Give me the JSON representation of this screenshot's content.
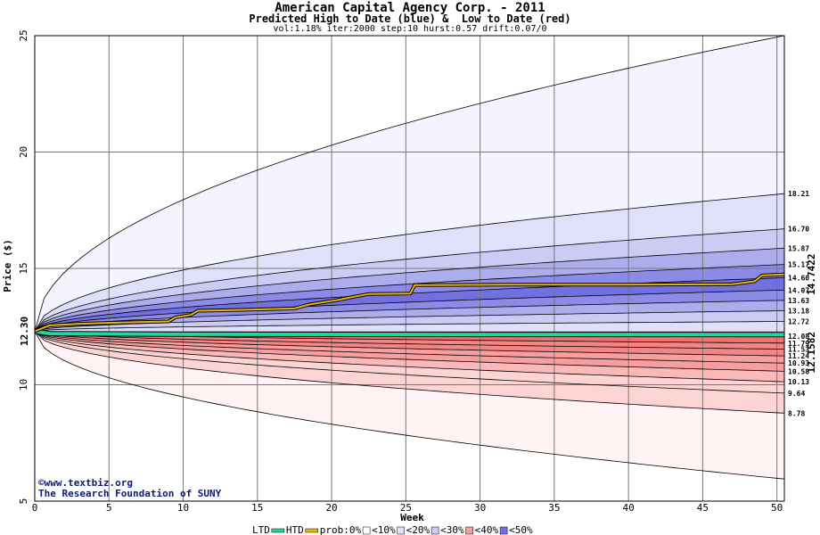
{
  "header": {
    "title": "American Capital Agency Corp. - 2011",
    "subtitle": "Predicted High to Date (blue) &  Low to Date (red)",
    "params": "vol:1.18% iter:2000 step:10 hurst:0.57 drift:0.07/0"
  },
  "watermark": {
    "line1": "©www.textbiz.org",
    "line2": "The Research Foundation of SUNY"
  },
  "legend": {
    "ltd": "LTD",
    "htd": "HTD",
    "prob": "prob:0%",
    "b10": "<10%",
    "b20": "<20%",
    "b30": "<30%",
    "b40": "<40%",
    "b50": "<50%"
  },
  "colors": {
    "ltd": "#1fd6a0",
    "htd": "#f0b400",
    "blue": [
      "#f4f4ff",
      "#e0e0fa",
      "#cbcbf4",
      "#adadee",
      "#8c8ce8",
      "#7070e0"
    ],
    "red": [
      "#fff3f3",
      "#fcd4d4",
      "#fab8b8",
      "#f79e9e",
      "#f48585",
      "#f07070"
    ]
  },
  "chart_data": {
    "type": "area",
    "xlabel": "Week",
    "ylabel": "Price ($)",
    "xlim": [
      0,
      50.5
    ],
    "ylim": [
      5,
      25
    ],
    "xticks": [
      0,
      5,
      10,
      15,
      20,
      25,
      30,
      35,
      40,
      45,
      50
    ],
    "yticks": [
      5,
      10,
      15,
      20,
      25
    ],
    "start_price": 12.3,
    "start_label": "12.30",
    "htd_end": 14.7422,
    "htd_end_label": "14.7422",
    "ltd_end": 12.1582,
    "ltd_end_label": "12.1582",
    "upper_quantiles": [
      {
        "end": 25.0,
        "label": "",
        "prob": "0%"
      },
      {
        "end": 18.21,
        "label": "18.21",
        "prob": "<10%"
      },
      {
        "end": 16.7,
        "label": "16.70",
        "prob": "<20%"
      },
      {
        "end": 15.87,
        "label": "15.87",
        "prob": "<30%"
      },
      {
        "end": 15.17,
        "label": "15.17",
        "prob": "<40%"
      },
      {
        "end": 14.6,
        "label": "14.60",
        "prob": "<50%"
      },
      {
        "end": 14.07,
        "label": "14.07",
        "prob": "<50%"
      },
      {
        "end": 13.63,
        "label": "13.63",
        "prob": "<40%"
      },
      {
        "end": 13.18,
        "label": "13.18",
        "prob": "<30%"
      },
      {
        "end": 12.72,
        "label": "12.72",
        "prob": "<20%"
      }
    ],
    "lower_quantiles": [
      {
        "end": 12.08,
        "label": "12.08"
      },
      {
        "end": 11.79,
        "label": "11.79"
      },
      {
        "end": 11.53,
        "label": "11.53"
      },
      {
        "end": 11.24,
        "label": "11.24"
      },
      {
        "end": 10.93,
        "label": "10.93"
      },
      {
        "end": 10.58,
        "label": "10.58"
      },
      {
        "end": 10.13,
        "label": "10.13"
      },
      {
        "end": 9.64,
        "label": "9.64"
      },
      {
        "end": 8.78,
        "label": "8.78"
      },
      {
        "end": 5.95,
        "label": ""
      }
    ],
    "htd_path": [
      [
        0,
        12.3
      ],
      [
        1,
        12.55
      ],
      [
        3,
        12.62
      ],
      [
        6,
        12.68
      ],
      [
        9,
        12.72
      ],
      [
        9.5,
        12.9
      ],
      [
        10.5,
        13.0
      ],
      [
        11,
        13.18
      ],
      [
        14,
        13.22
      ],
      [
        17.5,
        13.28
      ],
      [
        18.5,
        13.45
      ],
      [
        19.5,
        13.55
      ],
      [
        20.5,
        13.65
      ],
      [
        21.5,
        13.78
      ],
      [
        22.5,
        13.9
      ],
      [
        25.3,
        13.92
      ],
      [
        25.6,
        14.28
      ],
      [
        32,
        14.3
      ],
      [
        40,
        14.3
      ],
      [
        47,
        14.32
      ],
      [
        48.5,
        14.45
      ],
      [
        49,
        14.7
      ],
      [
        50.5,
        14.74
      ]
    ],
    "ltd_path": [
      [
        0,
        12.3
      ],
      [
        1,
        12.2
      ],
      [
        10,
        12.17
      ],
      [
        30,
        12.16
      ],
      [
        50.5,
        12.158
      ]
    ]
  }
}
